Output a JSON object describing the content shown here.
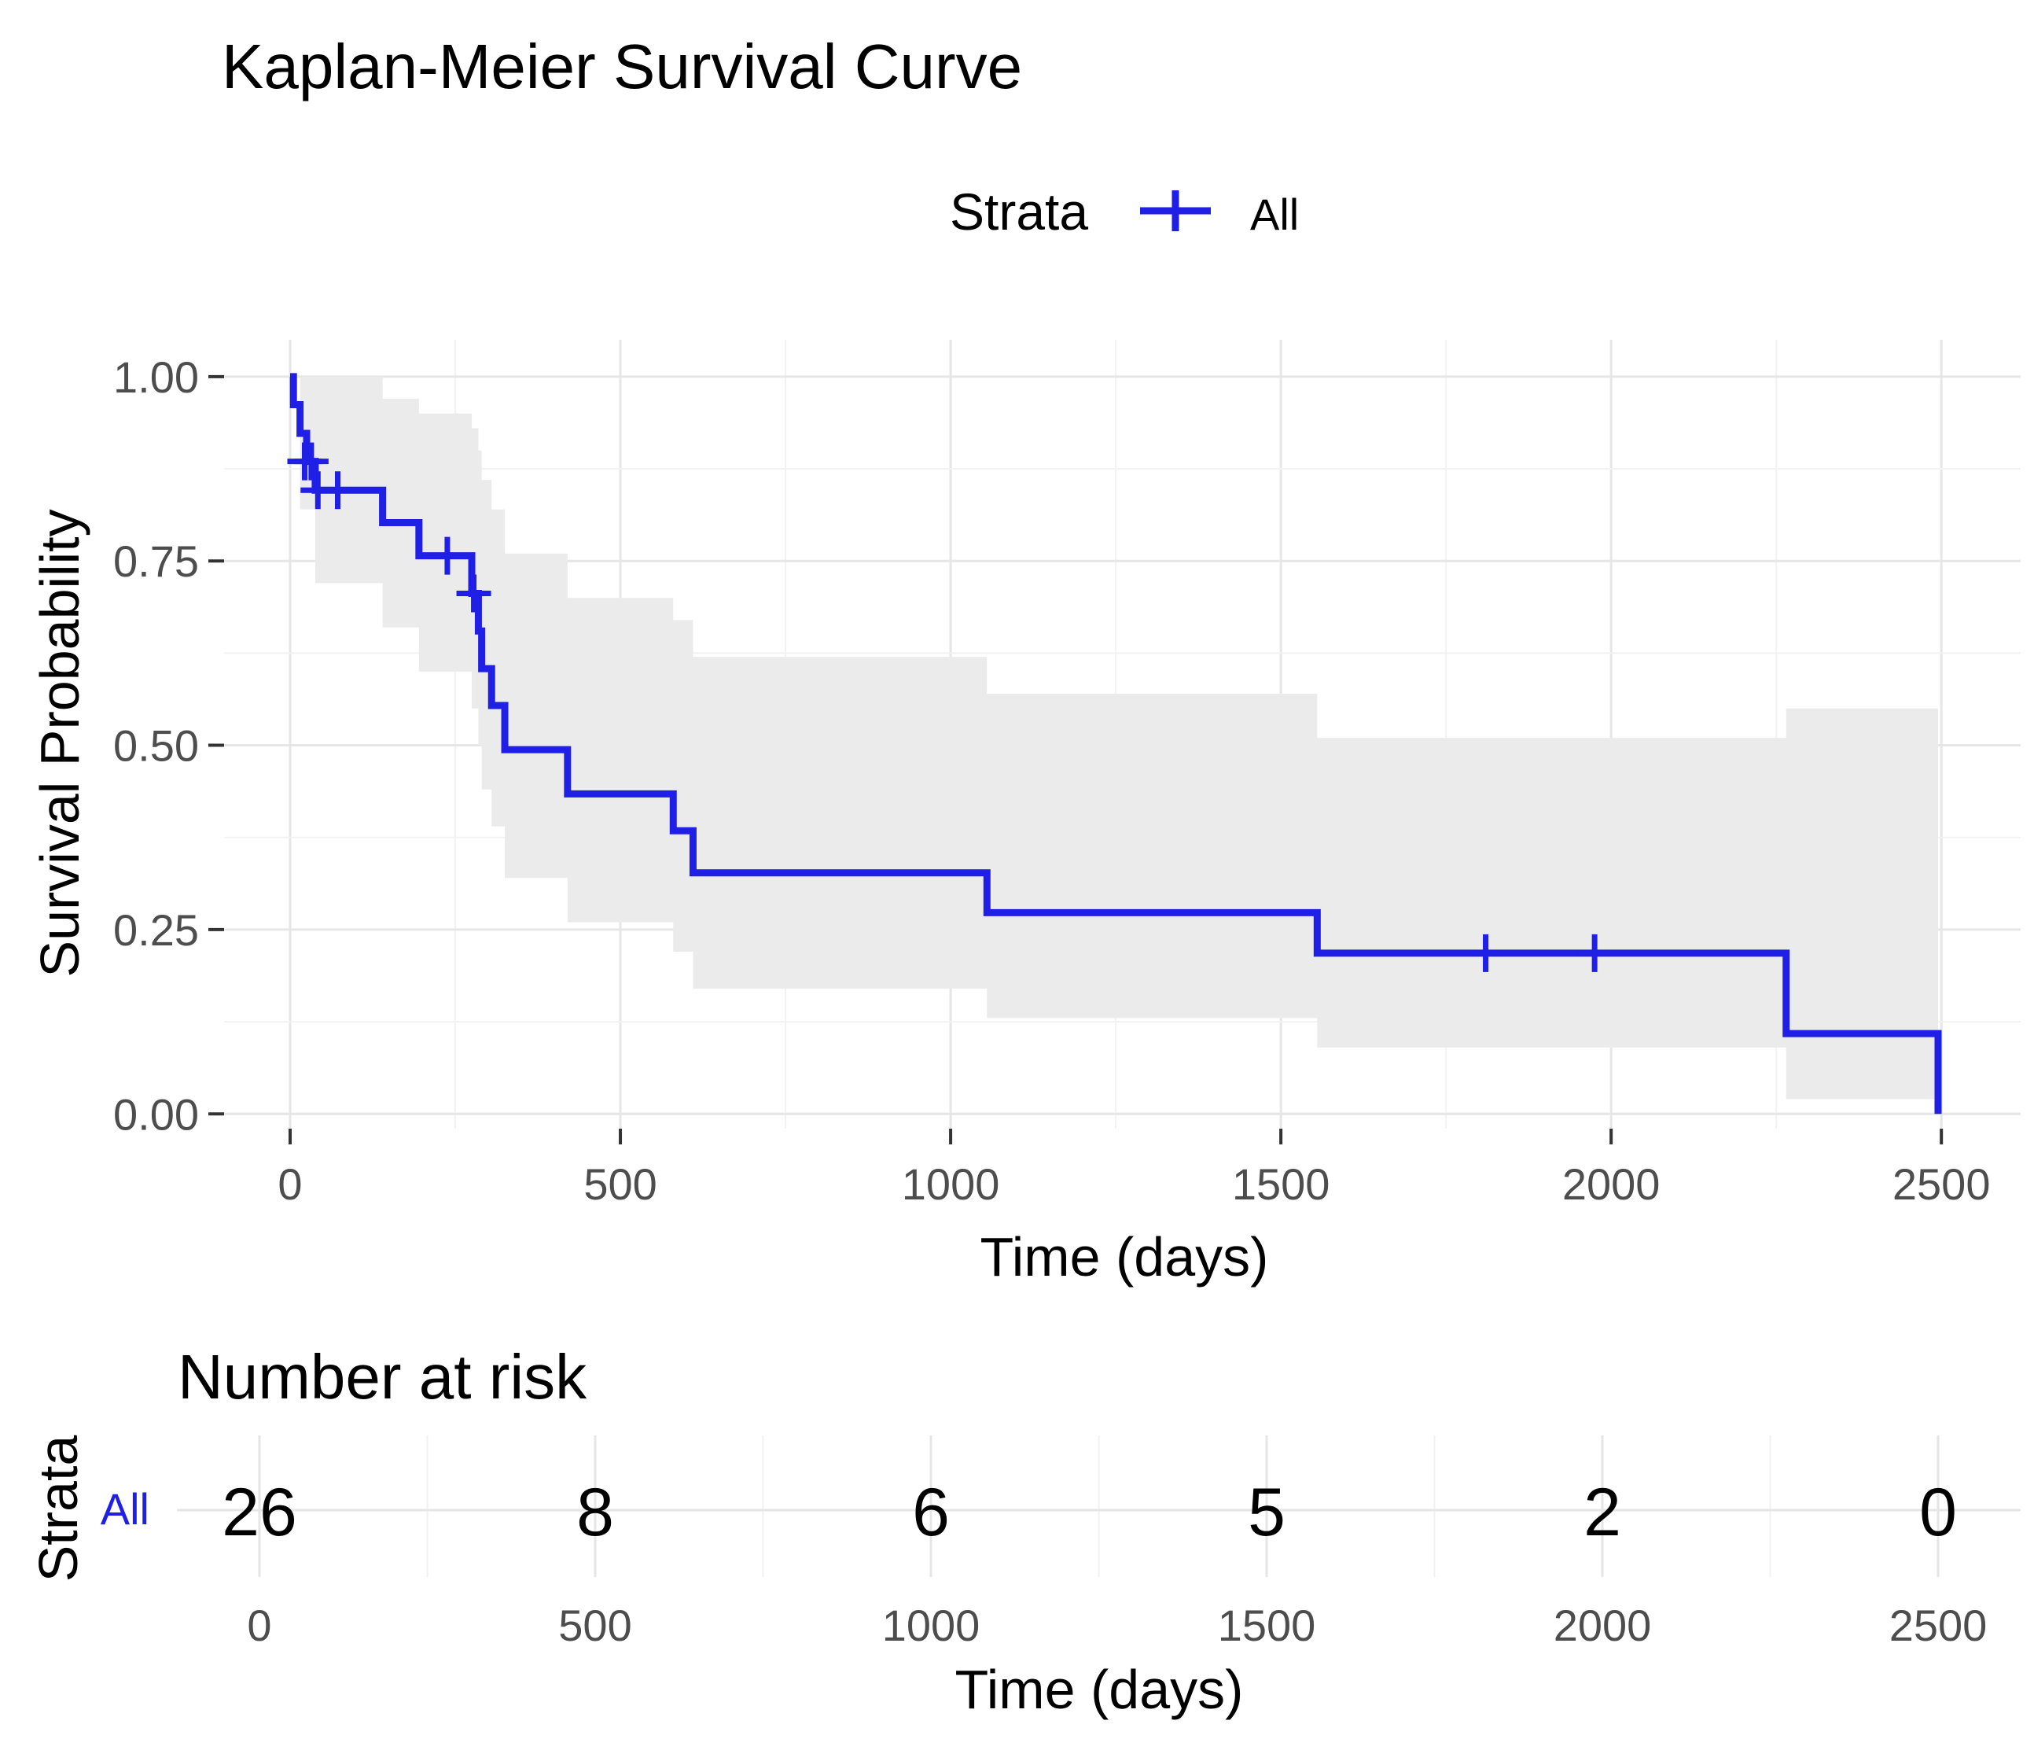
{
  "chart_data": [
    {
      "type": "line",
      "subtype": "kaplan-meier-step",
      "title": "Kaplan-Meier Survival Curve",
      "xlabel": "Time (days)",
      "ylabel": "Survival Probability",
      "xlim": [
        -100,
        2620
      ],
      "ylim": [
        -0.02,
        1.05
      ],
      "xticks": [
        0,
        500,
        1000,
        1500,
        2000,
        2500
      ],
      "xtick_labels": [
        "0",
        "500",
        "1000",
        "1500",
        "2000",
        "2500"
      ],
      "yticks": [
        0,
        0.25,
        0.5,
        0.75,
        1.0
      ],
      "ytick_labels": [
        "0.00",
        "0.25",
        "0.50",
        "0.75",
        "1.00"
      ],
      "grid": true,
      "legend": {
        "title": "Strata",
        "position": "top",
        "entries": [
          "All"
        ]
      },
      "series": [
        {
          "name": "All",
          "color": "#1f1fe6",
          "steps": [
            {
              "x": 0,
              "y": 1.0
            },
            {
              "x": 5,
              "y": 0.962
            },
            {
              "x": 15,
              "y": 0.923
            },
            {
              "x": 25,
              "y": 0.885
            },
            {
              "x": 38,
              "y": 0.846
            },
            {
              "x": 140,
              "y": 0.802
            },
            {
              "x": 195,
              "y": 0.757
            },
            {
              "x": 275,
              "y": 0.706
            },
            {
              "x": 285,
              "y": 0.655
            },
            {
              "x": 290,
              "y": 0.604
            },
            {
              "x": 305,
              "y": 0.554
            },
            {
              "x": 325,
              "y": 0.494
            },
            {
              "x": 420,
              "y": 0.434
            },
            {
              "x": 580,
              "y": 0.384
            },
            {
              "x": 610,
              "y": 0.327
            },
            {
              "x": 1055,
              "y": 0.273
            },
            {
              "x": 1555,
              "y": 0.218
            },
            {
              "x": 2265,
              "y": 0.109
            },
            {
              "x": 2495,
              "y": 0.0
            }
          ],
          "end_x": 2495,
          "censored": [
            {
              "x": 22,
              "y": 0.885
            },
            {
              "x": 32,
              "y": 0.885
            },
            {
              "x": 42,
              "y": 0.846
            },
            {
              "x": 72,
              "y": 0.846
            },
            {
              "x": 238,
              "y": 0.757
            },
            {
              "x": 278,
              "y": 0.706
            },
            {
              "x": 1810,
              "y": 0.218
            },
            {
              "x": 1975,
              "y": 0.218
            }
          ],
          "confidence_band": [
            {
              "x": 0,
              "lower": 1.0,
              "upper": 1.0
            },
            {
              "x": 15,
              "lower": 0.82,
              "upper": 1.0
            },
            {
              "x": 38,
              "lower": 0.72,
              "upper": 1.0
            },
            {
              "x": 140,
              "lower": 0.66,
              "upper": 0.97
            },
            {
              "x": 195,
              "lower": 0.6,
              "upper": 0.95
            },
            {
              "x": 275,
              "lower": 0.55,
              "upper": 0.93
            },
            {
              "x": 285,
              "lower": 0.5,
              "upper": 0.9
            },
            {
              "x": 290,
              "lower": 0.44,
              "upper": 0.86
            },
            {
              "x": 305,
              "lower": 0.39,
              "upper": 0.82
            },
            {
              "x": 325,
              "lower": 0.32,
              "upper": 0.76
            },
            {
              "x": 420,
              "lower": 0.26,
              "upper": 0.7
            },
            {
              "x": 580,
              "lower": 0.22,
              "upper": 0.67
            },
            {
              "x": 610,
              "lower": 0.17,
              "upper": 0.62
            },
            {
              "x": 1055,
              "lower": 0.13,
              "upper": 0.57
            },
            {
              "x": 1555,
              "lower": 0.09,
              "upper": 0.51
            },
            {
              "x": 2265,
              "lower": 0.02,
              "upper": 0.55
            },
            {
              "x": 2495,
              "lower": 0.02,
              "upper": 0.55
            }
          ],
          "band_color": "#ebebeb"
        }
      ]
    },
    {
      "type": "table",
      "title": "Number at risk",
      "xlabel": "Time (days)",
      "ylabel": "Strata",
      "row_label": "All",
      "xticks": [
        0,
        500,
        1000,
        1500,
        2000,
        2500
      ],
      "xtick_labels": [
        "0",
        "500",
        "1000",
        "1500",
        "2000",
        "2500"
      ],
      "values": [
        "26",
        "8",
        "6",
        "5",
        "2",
        "0"
      ],
      "label_color": "#1f1fe6"
    }
  ]
}
